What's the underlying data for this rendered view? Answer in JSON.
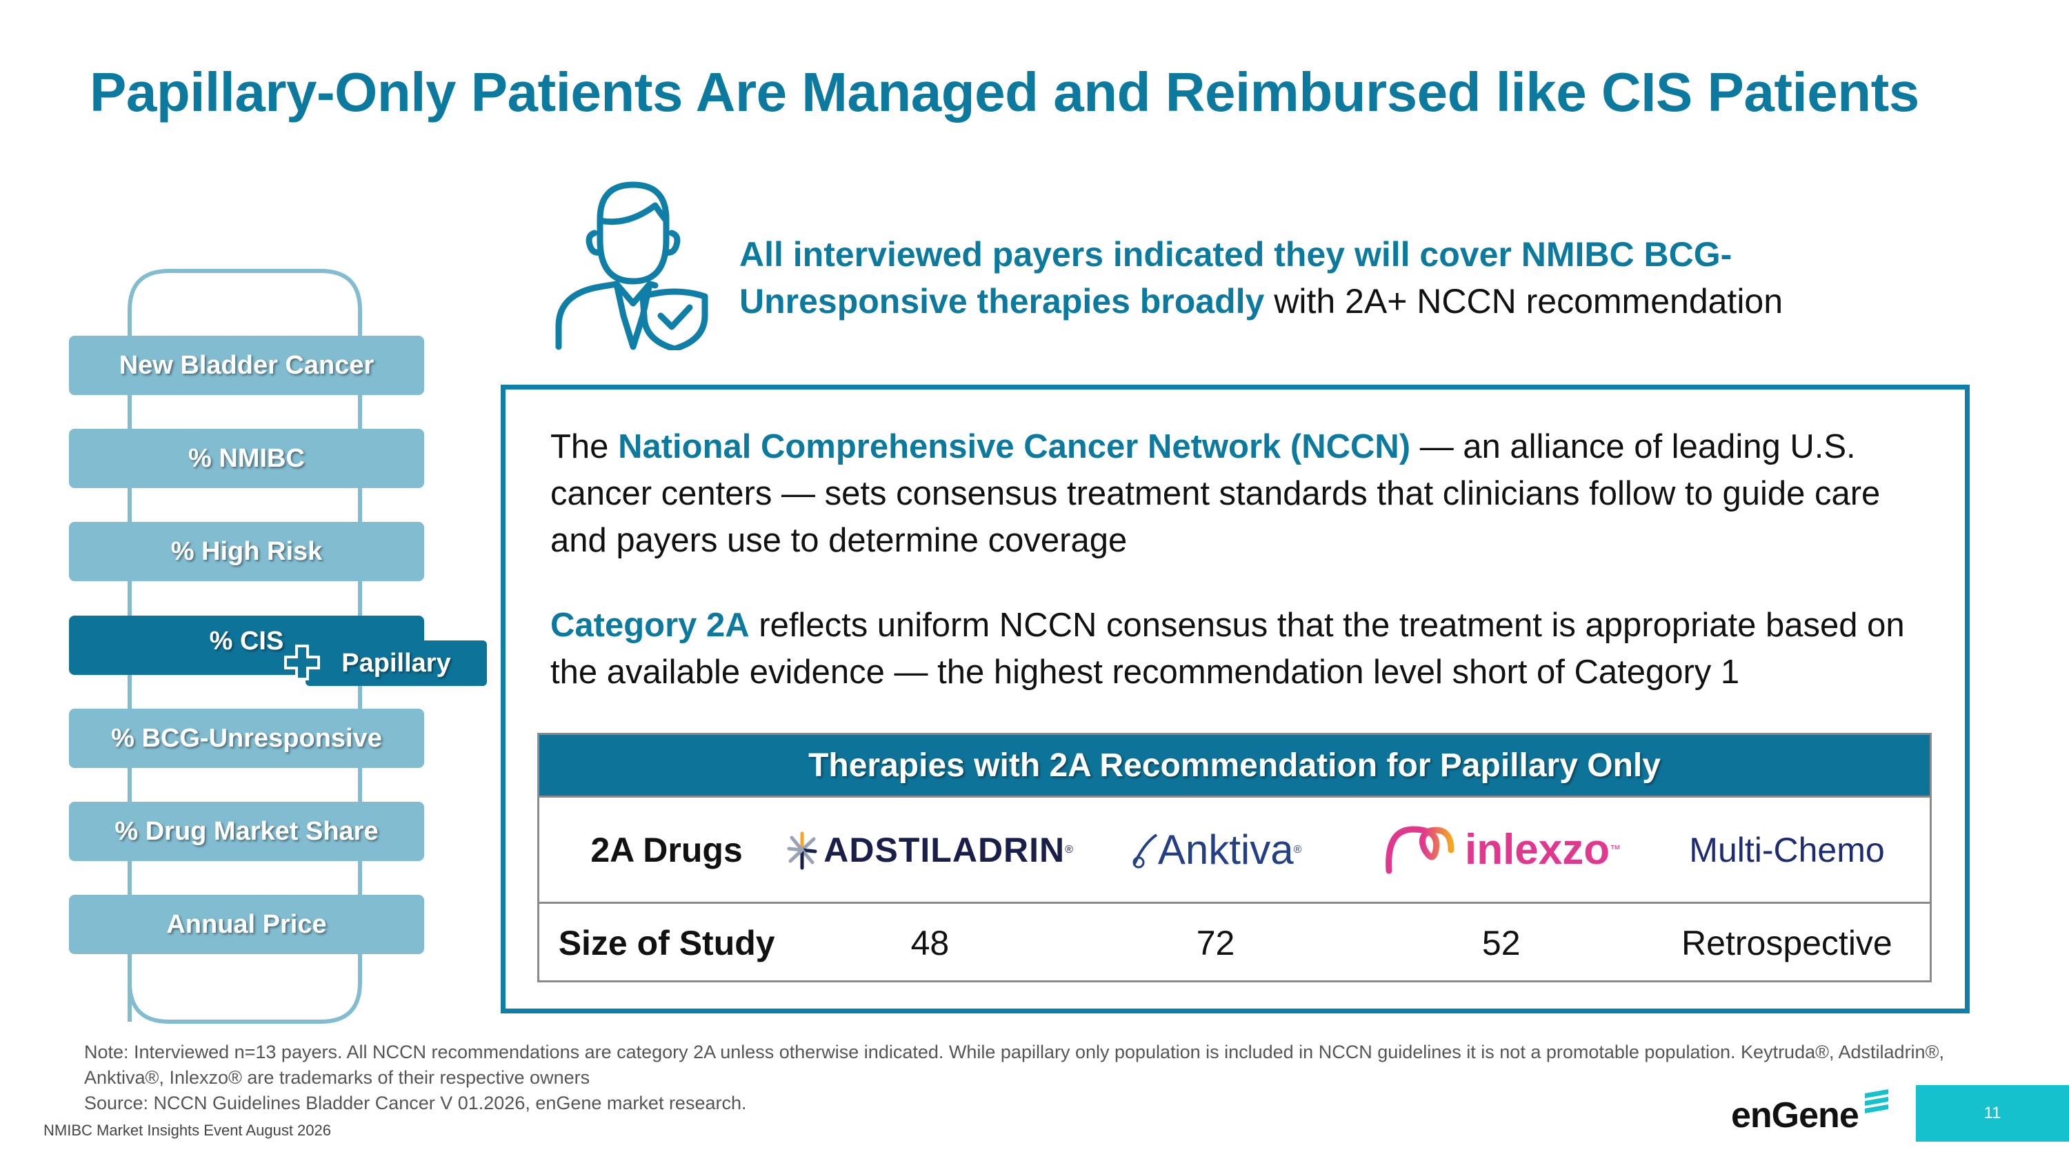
{
  "title": "Papillary-Only Patients Are Managed and Reimbursed like CIS Patients",
  "funnel": {
    "items": [
      {
        "label": "New Bladder Cancer",
        "active": false
      },
      {
        "label": "% NMIBC",
        "active": false
      },
      {
        "label": "% High Risk",
        "active": false
      },
      {
        "label": "% CIS",
        "active": true
      },
      {
        "label": "% BCG-Unresponsive",
        "active": false
      },
      {
        "label": "% Drug Market Share",
        "active": false
      },
      {
        "label": "Annual Price",
        "active": false
      }
    ],
    "papillary_label": "Papillary"
  },
  "callout": {
    "emphasis": "All interviewed payers indicated they will cover NMIBC BCG-Unresponsive therapies broadly",
    "rest": " with 2A+ NCCN recommendation"
  },
  "nccn": {
    "prefix": "The ",
    "emphasis": "National Comprehensive Cancer Network (NCCN)",
    "rest": " — an alliance of leading U.S. cancer centers — sets consensus treatment standards that clinicians follow to guide care and payers use to determine coverage"
  },
  "category": {
    "emphasis": "Category 2A",
    "rest": " reflects uniform NCCN consensus that the treatment is appropriate based on the available evidence — the highest recommendation level short of Category 1"
  },
  "table": {
    "header": "Therapies with 2A Recommendation for Papillary Only",
    "row1_label": "2A Drugs",
    "drugs": {
      "adstiladrin": "ADSTILADRIN",
      "anktiva": "Anktiva",
      "inlexzo": "inlexzo",
      "chemo": "Multi-Chemo"
    },
    "row2_label": "Size of Study",
    "sizes": [
      "48",
      "72",
      "52",
      "Retrospective"
    ]
  },
  "footnote": {
    "note": "Note: Interviewed n=13 payers. All NCCN recommendations are category 2A unless otherwise indicated. While papillary only population is included in NCCN guidelines it is not a promotable population. Keytruda®, Adstiladrin®, Anktiva®, Inlexzo® are trademarks of their respective owners",
    "source": "Source: NCCN Guidelines Bladder Cancer V 01.2026, enGene market research."
  },
  "event_label": "NMIBC Market Insights Event August 2026",
  "brand": "enGene",
  "page_number": "11",
  "colors": {
    "title": "#0c7a9e",
    "funnel_light": "#82bcd0",
    "funnel_active": "#0d7399",
    "box_border": "#0f7fa8",
    "page_tab": "#15c1cc"
  }
}
